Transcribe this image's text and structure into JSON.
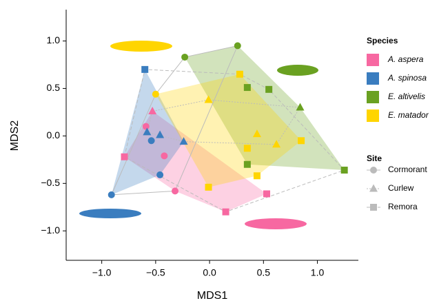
{
  "chart_data": {
    "type": "scatter",
    "xlabel": "MDS1",
    "ylabel": "MDS2",
    "xlim": [
      -1.33,
      1.38
    ],
    "ylim": [
      -1.31,
      1.33
    ],
    "xticks": [
      {
        "value": -1,
        "label": "−1.0"
      },
      {
        "value": -0.5,
        "label": "−0.5"
      },
      {
        "value": 0,
        "label": "0.0"
      },
      {
        "value": 0.5,
        "label": "0.5"
      },
      {
        "value": 1,
        "label": "1.0"
      }
    ],
    "yticks": [
      {
        "value": -1,
        "label": "−1.0"
      },
      {
        "value": -0.5,
        "label": "−0.5"
      },
      {
        "value": 0,
        "label": "0.0"
      },
      {
        "value": 0.5,
        "label": "0.5"
      },
      {
        "value": 1,
        "label": "1.0"
      }
    ],
    "legend_title": "Species",
    "site_legend_title": "Site",
    "sites": [
      {
        "name": "Cormorant",
        "shape": "circle",
        "dash": "solid"
      },
      {
        "name": "Curlew",
        "shape": "triangle",
        "dash": "dotted"
      },
      {
        "name": "Remora",
        "shape": "square",
        "dash": "dashed"
      }
    ],
    "series": [
      {
        "name": "A. aspera",
        "color": "#f768a1",
        "x": [
          -0.42,
          -0.32,
          -0.59,
          -0.53,
          -0.79,
          0.15,
          0.53
        ],
        "y": [
          -0.21,
          -0.58,
          0.1,
          0.26,
          -0.22,
          -0.8,
          -0.61
        ],
        "site": [
          "Cormorant",
          "Cormorant",
          "Cormorant",
          "Curlew",
          "Remora",
          "Remora",
          "Remora"
        ]
      },
      {
        "name": "A. spinosa",
        "color": "#3a7dbf",
        "x": [
          -0.91,
          -0.54,
          -0.46,
          -0.58,
          -0.46,
          -0.24,
          -0.6
        ],
        "y": [
          -0.62,
          -0.05,
          -0.41,
          0.04,
          0.01,
          -0.06,
          0.7
        ],
        "site": [
          "Cormorant",
          "Cormorant",
          "Cormorant",
          "Curlew",
          "Curlew",
          "Curlew",
          "Remora"
        ]
      },
      {
        "name": "E. altivelis",
        "color": "#6aa121",
        "x": [
          -0.23,
          0.26,
          0.84,
          0.35,
          0.55,
          0.35,
          1.25
        ],
        "y": [
          0.83,
          0.95,
          0.3,
          0.51,
          0.49,
          -0.3,
          -0.36
        ],
        "site": [
          "Cormorant",
          "Cormorant",
          "Curlew",
          "Remora",
          "Remora",
          "Remora",
          "Remora"
        ]
      },
      {
        "name": "E. matador",
        "color": "#ffd500",
        "x": [
          -0.5,
          -0.01,
          0.44,
          0.62,
          0.28,
          0.35,
          0.44,
          0.85,
          -0.01
        ],
        "y": [
          0.44,
          0.38,
          0.02,
          -0.09,
          0.65,
          -0.13,
          -0.42,
          -0.05,
          -0.54
        ],
        "site": [
          "Cormorant",
          "Curlew",
          "Curlew",
          "Curlew",
          "Remora",
          "Remora",
          "Remora",
          "Remora",
          "Remora"
        ]
      }
    ]
  }
}
